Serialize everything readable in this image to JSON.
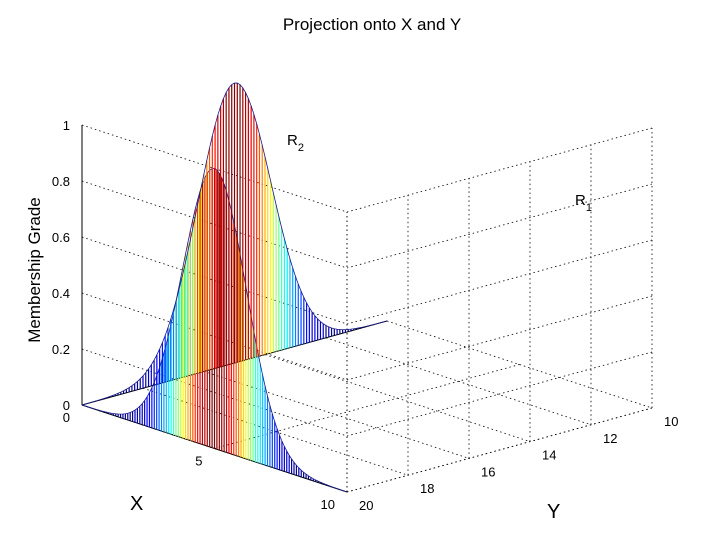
{
  "chart_data": {
    "type": "3d-stem",
    "title": "Projection onto X and Y",
    "xlabel": "X",
    "ylabel": "Y",
    "zlabel": "Membership Grade",
    "xlim": [
      0,
      10
    ],
    "ylim": [
      10,
      20
    ],
    "zlim": [
      0,
      1
    ],
    "x_ticks": [
      "0",
      "5",
      "10"
    ],
    "y_ticks": [
      "10",
      "12",
      "14",
      "16",
      "18",
      "20"
    ],
    "z_ticks": [
      "0",
      "0.2",
      "0.4",
      "0.6",
      "0.8",
      "1"
    ],
    "grid": true,
    "colormap": "jet",
    "series": [
      {
        "name": "R2",
        "label_main": "R",
        "label_sub": "2",
        "projection": "onto X (plotted on wall Y = 20)",
        "center_x": 5,
        "sigma": 1.2,
        "peak": 1
      },
      {
        "name": "R1",
        "label_main": "R",
        "label_sub": "1",
        "projection": "onto Y (plotted on wall X = 0)",
        "center_y": 15,
        "sigma": 1.2,
        "peak": 1
      }
    ]
  }
}
